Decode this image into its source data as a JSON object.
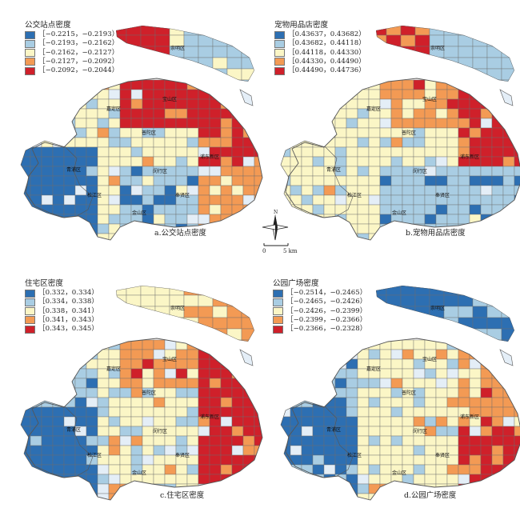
{
  "colors": {
    "c1": "#2d6fb2",
    "c2": "#a9cde3",
    "c3": "#fbf6c6",
    "c4": "#f39a54",
    "c5": "#cf202a",
    "land_bg": "#e4eef7",
    "border": "#6d6d6d"
  },
  "panels": [
    {
      "id": "a",
      "legend_title": "公交站点密度",
      "legend_items": [
        "［−0.2215，−0.2193）",
        "［−0.2193，−0.2162）",
        "［−0.2162，−0.2127）",
        "［−0.2127，−0.2092）",
        "［−0.2092，−0.2044）"
      ],
      "caption": "a.公交站点密度",
      "district_labels": [
        "崇明区",
        "宝山区",
        "嘉定区",
        "普陀区",
        "浦东新区",
        "青浦区",
        "闵行区",
        "松江区",
        "奉贤区",
        "金山区"
      ]
    },
    {
      "id": "b",
      "legend_title": "宠物用品店密度",
      "legend_items": [
        "［0.43637，0.43682）",
        "［0.43682，0.44118）",
        "［0.44118，0.44330）",
        "［0.44330，0.44490）",
        "［0.44490，0.44736）"
      ],
      "caption": "b.宠物用品店密度",
      "district_labels": [
        "崇明区",
        "宝山区",
        "嘉定区",
        "普陀区",
        "浦东新区",
        "青浦区",
        "闵行区",
        "松江区",
        "奉贤区",
        "金山区"
      ]
    },
    {
      "id": "c",
      "legend_title": "住宅区密度",
      "legend_items": [
        "［0.332，0.334）",
        "［0.334，0.338）",
        "［0.338，0.341）",
        "［0.341，0.343）",
        "［0.343，0.345）"
      ],
      "caption": "c.住宅区密度",
      "district_labels": [
        "崇明区",
        "宝山区",
        "嘉定区",
        "普陀区",
        "浦东新区",
        "青浦区",
        "闵行区",
        "松江区",
        "奉贤区",
        "金山区"
      ]
    },
    {
      "id": "d",
      "legend_title": "公园广场密度",
      "legend_items": [
        "［−0.2514，−0.2465）",
        "［−0.2465，−0.2426）",
        "［−0.2426，−0.2399）",
        "［−0.2399，−0.2366）",
        "［−0.2366，−0.2328）"
      ],
      "caption": "d.公园广场密度",
      "district_labels": [
        "崇明区",
        "宝山区",
        "嘉定区",
        "普陀区",
        "浦东新区",
        "青浦区",
        "闵行区",
        "松江区",
        "奉贤区",
        "金山区"
      ]
    }
  ],
  "compass": {
    "north_label": "N",
    "scale_label_start": "0",
    "scale_label_end": "5 km"
  }
}
